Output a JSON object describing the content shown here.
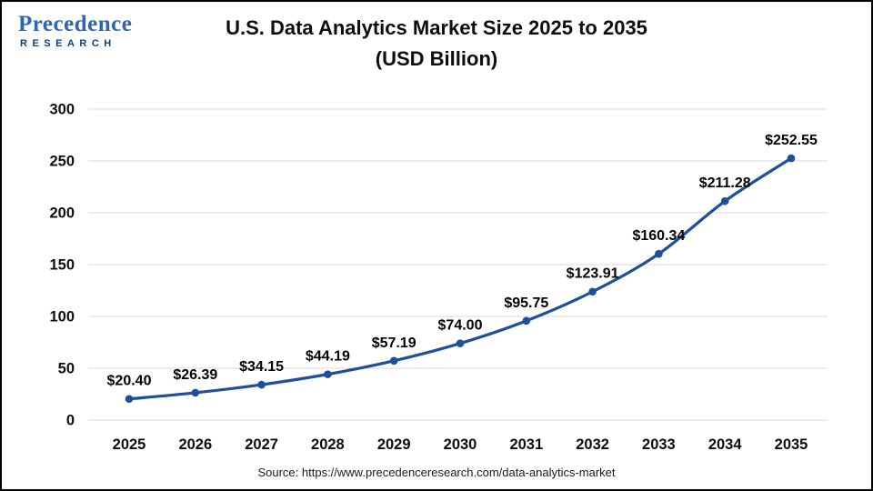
{
  "page": {
    "background": "#ffffff",
    "border_color": "#000000"
  },
  "logo": {
    "line1": "Precedence",
    "line2": "RESEARCH",
    "color_primary": "#2a67b5",
    "color_secondary": "#0f3e7c"
  },
  "header": {
    "title_line1": "U.S. Data Analytics Market Size 2025 to 2035",
    "title_line2": "(USD Billion)"
  },
  "footer": {
    "source": "Source: https://www.precedenceresearch.com/data-analytics-market"
  },
  "chart_data": {
    "type": "line",
    "title": "U.S. Data Analytics Market Size 2025 to 2035 (USD Billion)",
    "categories": [
      "2025",
      "2026",
      "2027",
      "2028",
      "2029",
      "2030",
      "2031",
      "2032",
      "2033",
      "2034",
      "2035"
    ],
    "values": [
      20.4,
      26.39,
      34.15,
      44.19,
      57.19,
      74.0,
      95.75,
      123.91,
      160.34,
      211.28,
      252.55
    ],
    "labels": [
      "$20.40",
      "$26.39",
      "$34.15",
      "$44.19",
      "$57.19",
      "$74.00",
      "$95.75",
      "$123.91",
      "$160.34",
      "$211.28",
      "$252.55"
    ],
    "xlabel": "",
    "ylabel": "",
    "ylim": [
      0,
      300
    ],
    "yticks": [
      0,
      50,
      100,
      150,
      200,
      250,
      300
    ],
    "grid": true,
    "gridline_color": "#d9d9d9",
    "line_color": "#1f4e9b",
    "marker": "circle",
    "legend": "none"
  }
}
